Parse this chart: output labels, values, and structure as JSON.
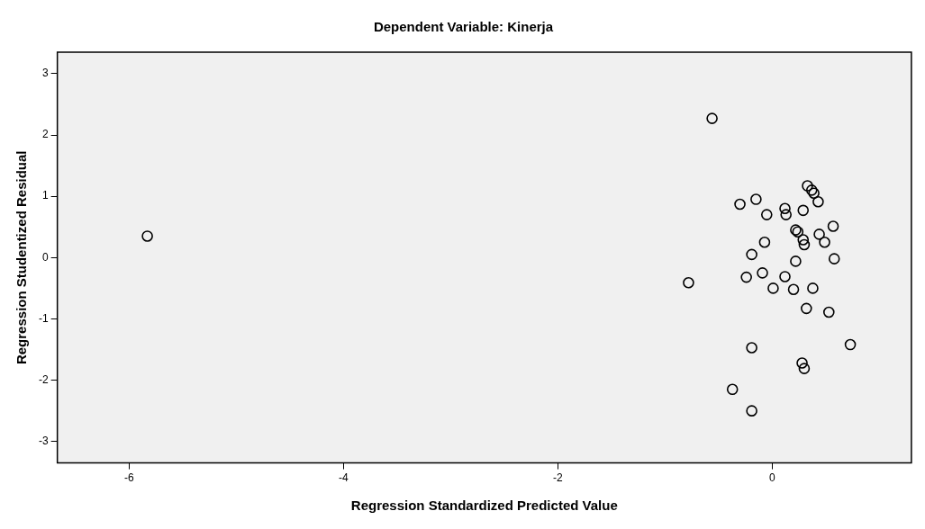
{
  "chart_data": {
    "type": "scatter",
    "title": "Dependent Variable: Kinerja",
    "xlabel": "Regression Standardized Predicted Value",
    "ylabel": "Regression Studentized Residual",
    "xlim": [
      -6.67,
      1.3
    ],
    "xticks": [
      -6,
      -4,
      -2,
      0
    ],
    "ylim": [
      -3.35,
      3.35
    ],
    "yticks": [
      -3,
      -2,
      -1,
      0,
      1,
      2,
      3
    ],
    "grid": false,
    "legend": false,
    "marker": "circle",
    "series": [
      {
        "color": "#000000",
        "x": [
          -5.83,
          -0.56,
          0.33,
          0.37,
          0.39,
          0.43,
          -0.3,
          -0.15,
          -0.05,
          0.12,
          0.13,
          0.29,
          0.57,
          0.22,
          0.24,
          0.44,
          0.29,
          0.3,
          0.49,
          -0.07,
          -0.19,
          0.58,
          0.22,
          -0.78,
          -0.24,
          -0.09,
          0.12,
          0.01,
          0.2,
          0.38,
          0.32,
          0.53,
          0.73,
          -0.19,
          0.28,
          0.3,
          -0.37,
          -0.19
        ],
        "values": [
          0.35,
          2.27,
          1.17,
          1.1,
          1.05,
          0.91,
          0.87,
          0.95,
          0.7,
          0.8,
          0.7,
          0.77,
          0.51,
          0.45,
          0.42,
          0.38,
          0.29,
          0.21,
          0.25,
          0.25,
          0.05,
          -0.02,
          -0.06,
          -0.41,
          -0.32,
          -0.25,
          -0.31,
          -0.5,
          -0.52,
          -0.5,
          -0.83,
          -0.89,
          -1.42,
          -1.47,
          -1.72,
          -1.81,
          -2.15,
          -2.5
        ]
      }
    ]
  }
}
